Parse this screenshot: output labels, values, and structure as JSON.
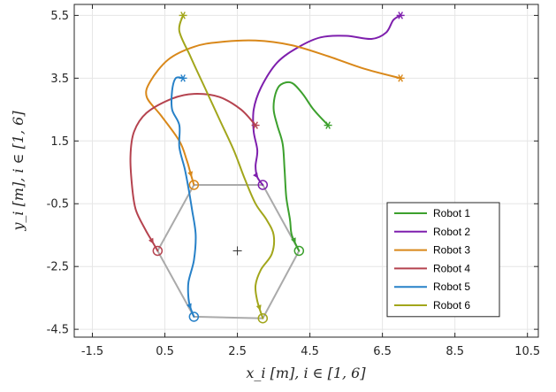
{
  "chart_data": {
    "type": "line",
    "title": "",
    "xlabel": "x_i [m],    i ∈ [1, 6]",
    "ylabel": "y_i [m],    i ∈ [1, 6]",
    "xlim": [
      -2.0,
      10.8
    ],
    "ylim": [
      -4.75,
      5.85
    ],
    "xticks": [
      "-1.5",
      "0.5",
      "2.5",
      "4.5",
      "6.5",
      "8.5",
      "10.5"
    ],
    "xtick_values": [
      -1.5,
      0.5,
      2.5,
      4.5,
      6.5,
      8.5,
      10.5
    ],
    "yticks": [
      "-4.5",
      "-2.5",
      "-0.5",
      "1.5",
      "3.5",
      "5.5"
    ],
    "ytick_values": [
      -4.5,
      -2.5,
      -0.5,
      1.5,
      3.5,
      5.5
    ],
    "grid": true,
    "legend_position": "bottom-right",
    "center_marker": [
      2.5,
      -2.0
    ],
    "formation": {
      "color": "#aaaaaa",
      "vertices": [
        [
          1.3,
          0.1
        ],
        [
          3.2,
          0.1
        ],
        [
          4.2,
          -2.0
        ],
        [
          3.2,
          -4.15
        ],
        [
          1.3,
          -4.1
        ],
        [
          0.3,
          -2.0
        ]
      ]
    },
    "series": [
      {
        "name": "Robot 1",
        "color": "#3ca02d",
        "start": [
          5.0,
          2.0
        ],
        "goal": [
          4.2,
          -2.0
        ],
        "points": [
          [
            5.0,
            2.0
          ],
          [
            4.6,
            2.5
          ],
          [
            4.3,
            3.0
          ],
          [
            4.0,
            3.35
          ],
          [
            3.7,
            3.3
          ],
          [
            3.55,
            3.0
          ],
          [
            3.5,
            2.5
          ],
          [
            3.6,
            2.0
          ],
          [
            3.75,
            1.4
          ],
          [
            3.8,
            0.6
          ],
          [
            3.85,
            -0.3
          ],
          [
            3.95,
            -1.0
          ],
          [
            4.0,
            -1.5
          ],
          [
            4.2,
            -2.0
          ]
        ]
      },
      {
        "name": "Robot 2",
        "color": "#7e1fad",
        "start": [
          7.0,
          5.5
        ],
        "goal": [
          3.2,
          0.1
        ],
        "points": [
          [
            7.0,
            5.5
          ],
          [
            6.8,
            5.35
          ],
          [
            6.6,
            4.95
          ],
          [
            6.2,
            4.75
          ],
          [
            5.5,
            4.85
          ],
          [
            4.8,
            4.8
          ],
          [
            4.2,
            4.5
          ],
          [
            3.6,
            4.0
          ],
          [
            3.15,
            3.2
          ],
          [
            2.95,
            2.5
          ],
          [
            2.95,
            1.8
          ],
          [
            3.05,
            1.2
          ],
          [
            3.0,
            0.7
          ],
          [
            3.05,
            0.35
          ],
          [
            3.2,
            0.1
          ]
        ]
      },
      {
        "name": "Robot 3",
        "color": "#d9881a",
        "start": [
          7.0,
          3.5
        ],
        "goal": [
          1.3,
          0.1
        ],
        "points": [
          [
            7.0,
            3.5
          ],
          [
            6.0,
            3.8
          ],
          [
            5.0,
            4.2
          ],
          [
            4.0,
            4.55
          ],
          [
            3.0,
            4.7
          ],
          [
            2.0,
            4.65
          ],
          [
            1.3,
            4.5
          ],
          [
            0.6,
            4.1
          ],
          [
            0.1,
            3.4
          ],
          [
            0.0,
            2.9
          ],
          [
            0.4,
            2.3
          ],
          [
            0.9,
            1.5
          ],
          [
            1.1,
            0.9
          ],
          [
            1.2,
            0.5
          ],
          [
            1.3,
            0.1
          ]
        ]
      },
      {
        "name": "Robot 4",
        "color": "#b5434f",
        "start": [
          3.0,
          2.0
        ],
        "goal": [
          0.3,
          -2.0
        ],
        "points": [
          [
            3.0,
            2.0
          ],
          [
            2.6,
            2.5
          ],
          [
            2.0,
            2.9
          ],
          [
            1.3,
            3.0
          ],
          [
            0.7,
            2.85
          ],
          [
            0.0,
            2.4
          ],
          [
            -0.35,
            1.8
          ],
          [
            -0.45,
            1.0
          ],
          [
            -0.4,
            0.0
          ],
          [
            -0.3,
            -0.7
          ],
          [
            -0.05,
            -1.3
          ],
          [
            0.1,
            -1.6
          ],
          [
            0.3,
            -2.0
          ]
        ]
      },
      {
        "name": "Robot 5",
        "color": "#2781c8",
        "start": [
          1.0,
          3.5
        ],
        "goal": [
          1.3,
          -4.1
        ],
        "points": [
          [
            1.0,
            3.5
          ],
          [
            0.8,
            3.5
          ],
          [
            0.7,
            3.1
          ],
          [
            0.7,
            2.5
          ],
          [
            0.9,
            2.0
          ],
          [
            0.9,
            1.3
          ],
          [
            1.05,
            0.6
          ],
          [
            1.15,
            0.0
          ],
          [
            1.25,
            -0.7
          ],
          [
            1.35,
            -1.5
          ],
          [
            1.3,
            -2.3
          ],
          [
            1.15,
            -3.0
          ],
          [
            1.15,
            -3.5
          ],
          [
            1.2,
            -3.8
          ],
          [
            1.3,
            -4.1
          ]
        ]
      },
      {
        "name": "Robot 6",
        "color": "#a2a61b",
        "start": [
          1.0,
          5.5
        ],
        "goal": [
          3.2,
          -4.15
        ],
        "points": [
          [
            1.0,
            5.5
          ],
          [
            0.9,
            5.0
          ],
          [
            1.2,
            4.2
          ],
          [
            1.6,
            3.2
          ],
          [
            2.0,
            2.2
          ],
          [
            2.4,
            1.2
          ],
          [
            2.7,
            0.3
          ],
          [
            3.0,
            -0.5
          ],
          [
            3.3,
            -1.0
          ],
          [
            3.5,
            -1.5
          ],
          [
            3.45,
            -2.1
          ],
          [
            3.15,
            -2.6
          ],
          [
            3.0,
            -3.1
          ],
          [
            3.05,
            -3.6
          ],
          [
            3.2,
            -4.15
          ]
        ]
      }
    ]
  }
}
